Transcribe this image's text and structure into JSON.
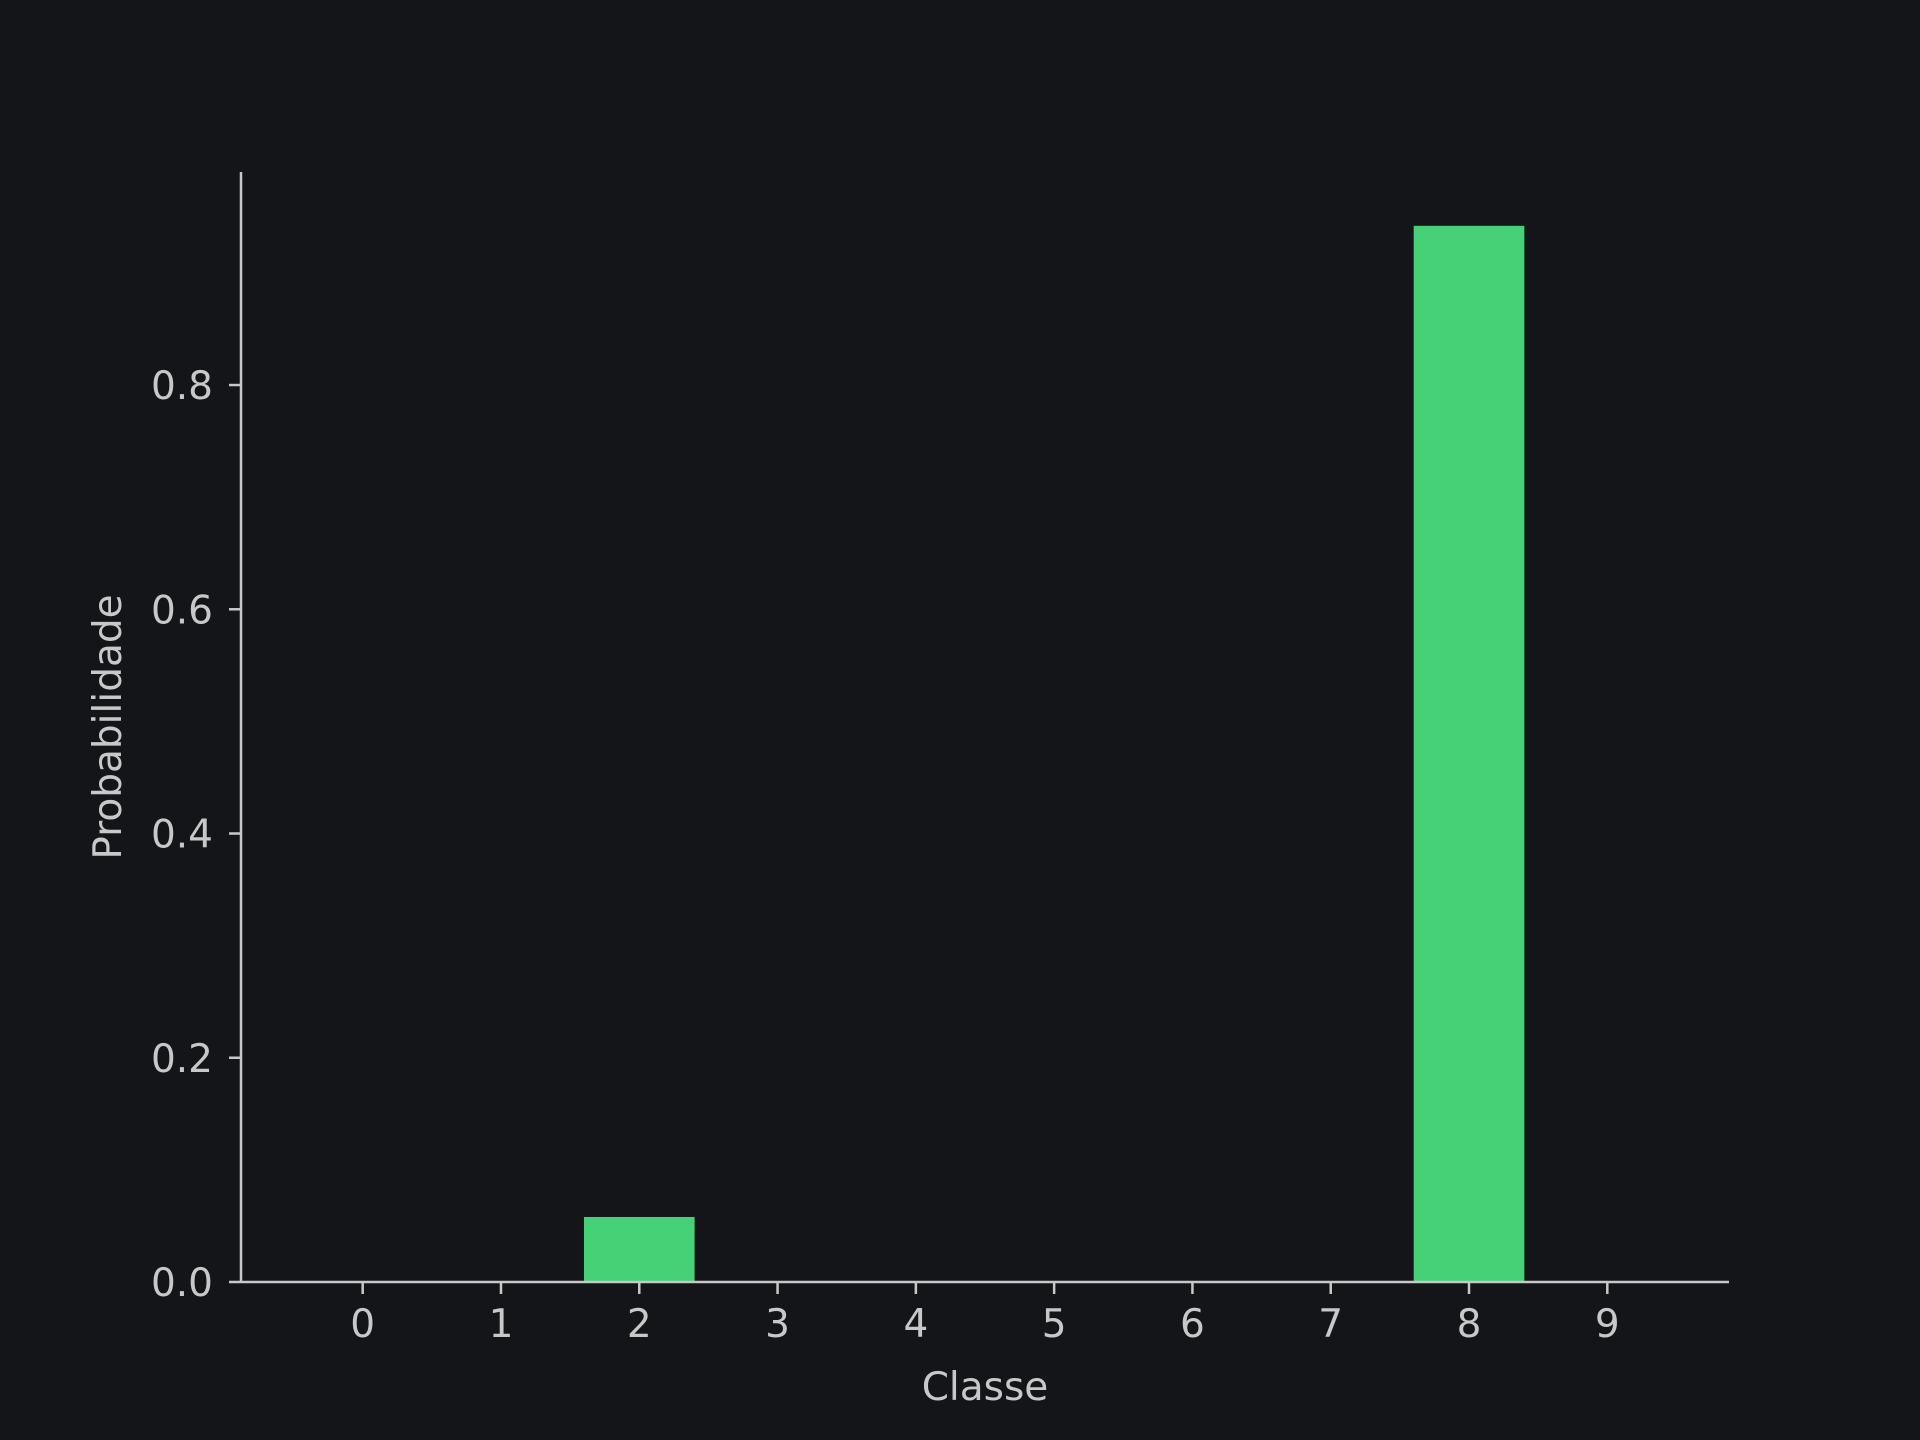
{
  "colors": {
    "background": "#131519",
    "bar": "#47d176",
    "axis": "#c8c8c8",
    "text": "#c8c8c8"
  },
  "chart_data": {
    "type": "bar",
    "categories": [
      "0",
      "1",
      "2",
      "3",
      "4",
      "5",
      "6",
      "7",
      "8",
      "9"
    ],
    "values": [
      0.0,
      0.0,
      0.058,
      0.0,
      0.0,
      0.0,
      0.0,
      0.0,
      0.942,
      0.0
    ],
    "xlabel": "Classe",
    "ylabel": "Probabilidade",
    "ylim": [
      0,
      0.99
    ],
    "yticks": [
      0.0,
      0.2,
      0.4,
      0.6,
      0.8
    ],
    "ytick_labels": [
      "0.0",
      "0.2",
      "0.4",
      "0.6",
      "0.8"
    ],
    "grid": false,
    "legend": "none"
  }
}
